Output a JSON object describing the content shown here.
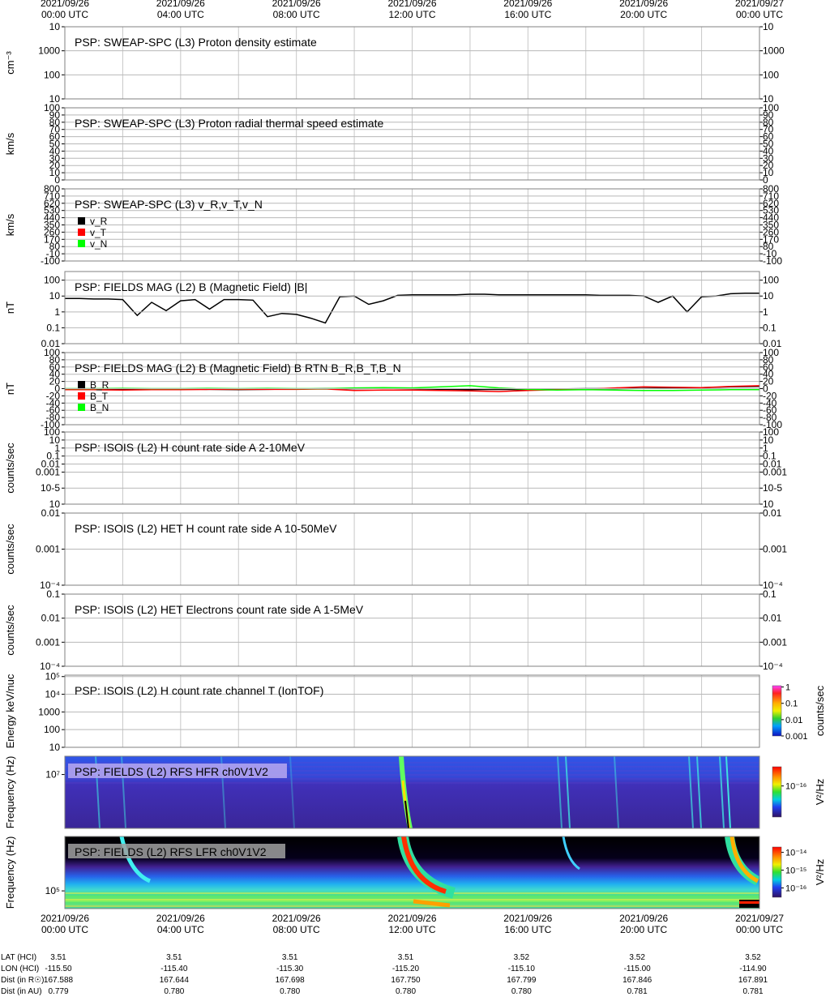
{
  "time_axis": {
    "xlim": [
      0,
      24
    ],
    "ticks": [
      {
        "value": 0,
        "date": "2021/09/26",
        "time": "00:00 UTC"
      },
      {
        "value": 4,
        "date": "2021/09/26",
        "time": "04:00 UTC"
      },
      {
        "value": 8,
        "date": "2021/09/26",
        "time": "08:00 UTC"
      },
      {
        "value": 12,
        "date": "2021/09/26",
        "time": "12:00 UTC"
      },
      {
        "value": 16,
        "date": "2021/09/26",
        "time": "16:00 UTC"
      },
      {
        "value": 20,
        "date": "2021/09/26",
        "time": "20:00 UTC"
      },
      {
        "value": 24,
        "date": "2021/09/27",
        "time": "00:00 UTC"
      }
    ],
    "grid": [
      0,
      2,
      4,
      6,
      8,
      10,
      12,
      14,
      16,
      18,
      20,
      22,
      24
    ]
  },
  "chart_data": [
    {
      "type": "line",
      "title": "PSP: SWEAP-SPC (L3) Proton density estimate",
      "ylabel": "cm⁻³",
      "log": true,
      "ylim": [
        10,
        10000
      ],
      "yticks": [
        {
          "value": 10000,
          "label": "10"
        },
        1000,
        100,
        10
      ],
      "mirror_ticks": true,
      "series": []
    },
    {
      "type": "line",
      "title": "PSP: SWEAP-SPC (L3) Proton radial thermal speed estimate",
      "ylabel": "km/s",
      "log": false,
      "ylim": [
        0,
        100
      ],
      "yticks": [
        100,
        90,
        80,
        70,
        60,
        50,
        40,
        30,
        20,
        10,
        0
      ],
      "mirror_ticks": true,
      "series": []
    },
    {
      "type": "line",
      "title": "PSP: SWEAP-SPC (L3) v_R,v_T,v_N",
      "ylabel": "km/s",
      "log": false,
      "ylim": [
        -100,
        800
      ],
      "yticks": [
        800,
        710,
        620,
        530,
        440,
        350,
        260,
        170,
        80,
        -10,
        -100
      ],
      "mirror_ticks": true,
      "x": [],
      "series": [
        {
          "name": "v_R",
          "color": "#000000",
          "values": []
        },
        {
          "name": "v_T",
          "color": "#ff0000",
          "values": []
        },
        {
          "name": "v_N",
          "color": "#00ff00",
          "values": []
        }
      ]
    },
    {
      "type": "line",
      "title": "PSP: FIELDS MAG (L2) B (Magnetic Field) |B|",
      "ylabel": "nT",
      "log": true,
      "ylim": [
        0.01,
        350
      ],
      "yticks": [
        100,
        10,
        1,
        0.1,
        0.01
      ],
      "mirror_ticks": true,
      "x": [
        0,
        0.5,
        1,
        1.5,
        2,
        2.5,
        3,
        3.5,
        4,
        4.5,
        5,
        5.5,
        6,
        6.5,
        7,
        7.5,
        8,
        8.5,
        9,
        9.5,
        10,
        10.5,
        11,
        11.5,
        12,
        12.5,
        13,
        13.5,
        14,
        14.5,
        15,
        15.5,
        16,
        16.5,
        17,
        17.5,
        18,
        18.5,
        19,
        19.5,
        20,
        20.5,
        21,
        21.5,
        22,
        22.5,
        23,
        23.5,
        24
      ],
      "series": [
        {
          "color": "#000000",
          "values": [
            7,
            7,
            6.5,
            6.5,
            6,
            0.6,
            4,
            1.2,
            5,
            6,
            1.5,
            6,
            6,
            5.5,
            0.5,
            0.8,
            0.7,
            0.4,
            0.2,
            9,
            10,
            3,
            5,
            11,
            12,
            12,
            12,
            12,
            13,
            13,
            12,
            12,
            12,
            12,
            12,
            12,
            12,
            11,
            11,
            11,
            10,
            4,
            10,
            1,
            9,
            10,
            14,
            15,
            15
          ]
        }
      ]
    },
    {
      "type": "line",
      "title": "PSP: FIELDS MAG (L2) B (Magnetic Field) B RTN B_R,B_T,B_N",
      "ylabel": "nT",
      "log": false,
      "ylim": [
        -100,
        100
      ],
      "yticks": [
        100,
        80,
        60,
        40,
        20,
        0,
        -20,
        -40,
        -60,
        -80,
        -100
      ],
      "mirror_ticks": true,
      "x": [
        0,
        1,
        2,
        3,
        4,
        5,
        6,
        7,
        8,
        9,
        10,
        11,
        12,
        13,
        14,
        15,
        16,
        17,
        18,
        19,
        20,
        21,
        22,
        23,
        24
      ],
      "series": [
        {
          "name": "B_R",
          "color": "#000000",
          "values": [
            -2,
            -2,
            -1,
            -2,
            -1,
            -2,
            -3,
            -2,
            -1,
            0,
            0,
            1,
            0,
            -2,
            -3,
            -2,
            -3,
            -1,
            0,
            0,
            1,
            2,
            3,
            5,
            6
          ]
        },
        {
          "name": "B_T",
          "color": "#ff0000",
          "values": [
            -3,
            -3,
            -4,
            -3,
            -3,
            -2,
            -2,
            -2,
            -2,
            -1,
            -5,
            -4,
            -4,
            -5,
            -6,
            -8,
            -5,
            -3,
            -2,
            2,
            5,
            4,
            3,
            6,
            8
          ]
        },
        {
          "name": "B_N",
          "color": "#00ff00",
          "values": [
            0,
            0,
            1,
            0,
            0,
            1,
            0,
            1,
            0,
            0,
            2,
            3,
            2,
            5,
            8,
            2,
            -2,
            -4,
            -3,
            -4,
            -5,
            -5,
            -4,
            -3,
            -3
          ]
        }
      ]
    },
    {
      "type": "line",
      "title": "PSP: ISOIS (L2) H count rate side A 2-10MeV",
      "ylabel": "counts/sec",
      "log": true,
      "ylim": [
        1e-07,
        100
      ],
      "yticks": [
        100,
        10,
        1,
        0.1,
        0.01,
        0.001,
        {
          "value": 1e-05,
          "label": "10-5"
        },
        {
          "value": 1e-07,
          "label": "10"
        }
      ],
      "mirror_ticks": true,
      "series": []
    },
    {
      "type": "line",
      "title": "PSP: ISOIS (L2) HET H count rate side A 10-50MeV",
      "ylabel": "counts/sec",
      "log": true,
      "ylim": [
        0.0001,
        0.01
      ],
      "yticks": [
        0.01,
        0.001,
        {
          "value": 0.0001,
          "label": "10⁻⁴"
        }
      ],
      "mirror_ticks": true,
      "series": []
    },
    {
      "type": "line",
      "title": "PSP: ISOIS (L2) HET Electrons count rate side A 1-5MeV",
      "ylabel": "counts/sec",
      "log": true,
      "ylim": [
        0.0001,
        0.1
      ],
      "yticks": [
        0.1,
        0.01,
        0.001,
        {
          "value": 0.0001,
          "label": "10⁻⁴"
        }
      ],
      "mirror_ticks": true,
      "series": []
    },
    {
      "type": "line",
      "title": "PSP: ISOIS (L2) H count rate channel T (IonTOF)",
      "ylabel": "Energy keV/nuc",
      "log": true,
      "ylim": [
        10,
        120000
      ],
      "yticks": [
        {
          "value": 100000,
          "label": "10⁵"
        },
        {
          "value": 10000,
          "label": "10⁴"
        },
        1000,
        100,
        10
      ],
      "mirror_ticks": false,
      "series": [],
      "colorbar": {
        "label": "counts/sec",
        "lim": [
          0.001,
          1.2
        ],
        "ticks": [
          1,
          0.1,
          0.01,
          0.001
        ],
        "scheme": "iontof"
      }
    },
    {
      "type": "spectrogram",
      "title": "PSP: FIELDS (L2) RFS HFR ch0V1V2",
      "ylabel": "Frequency (Hz)",
      "log": true,
      "ylim": [
        1300000,
        20000000
      ],
      "yticks": [
        {
          "value": 10000000,
          "label": "10⁷"
        }
      ],
      "mirror_ticks": false,
      "band": "hfr",
      "colorbar": {
        "label": "V²/Hz",
        "lim": [
          1.4e-18,
          1.4e-15
        ],
        "ticks": [
          {
            "value": 1e-16,
            "label": "10⁻¹⁶"
          }
        ],
        "scheme": "rainbow"
      }
    },
    {
      "type": "spectrogram",
      "title": "PSP: FIELDS (L2) RFS LFR ch0V1V2",
      "ylabel": "Frequency (Hz)",
      "log": true,
      "ylim": [
        36000,
        2300000
      ],
      "yticks": [
        {
          "value": 100000,
          "label": "10⁵"
        }
      ],
      "mirror_ticks": false,
      "band": "lfr",
      "colorbar": {
        "label": "V²/Hz",
        "lim": [
          3e-17,
          2e-14
        ],
        "ticks": [
          {
            "value": 1e-14,
            "label": "10⁻¹⁴"
          },
          {
            "value": 1e-15,
            "label": "10⁻¹⁵"
          },
          {
            "value": 1e-16,
            "label": "10⁻¹⁶"
          }
        ],
        "scheme": "rainbow"
      }
    }
  ],
  "ephemeris": {
    "rows": [
      {
        "label": "LAT (HCI)",
        "values": [
          "3.51",
          "3.51",
          "3.51",
          "3.51",
          "3.52",
          "3.52",
          "3.52"
        ]
      },
      {
        "label": "LON (HCI)",
        "values": [
          "-115.50",
          "-115.40",
          "-115.30",
          "-115.20",
          "-115.10",
          "-115.00",
          "-114.90"
        ]
      },
      {
        "label": "Dist (in R☉)",
        "values": [
          "167.588",
          "167.644",
          "167.698",
          "167.750",
          "167.799",
          "167.846",
          "167.891"
        ]
      },
      {
        "label": "Dist (in AU)",
        "values": [
          "0.779",
          "0.780",
          "0.780",
          "0.780",
          "0.780",
          "0.781",
          "0.781"
        ]
      }
    ]
  }
}
